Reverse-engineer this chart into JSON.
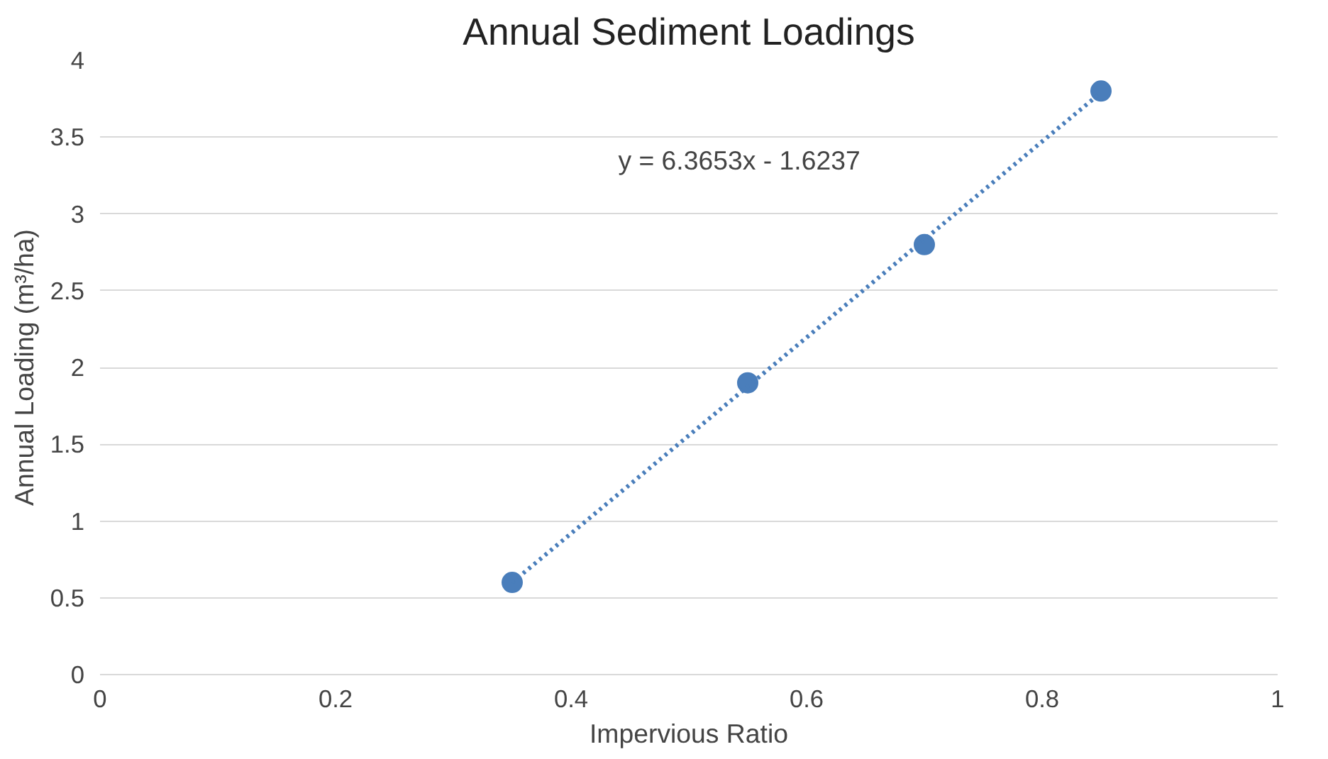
{
  "chart_data": {
    "type": "scatter",
    "title": "Annual Sediment Loadings",
    "xlabel": "Impervious Ratio",
    "ylabel": "Annual Loading (m³/ha)",
    "annotations": [
      "y = 6.3653x - 1.6237"
    ],
    "series": [
      {
        "color": "#4a7ebb",
        "x": [
          0.35,
          0.55,
          0.7,
          0.85
        ],
        "values": [
          0.6,
          1.9,
          2.8,
          3.8
        ],
        "marker": "circle"
      },
      {
        "type": "line",
        "color": "#4a7ebb",
        "x": [
          0.35,
          0.85
        ],
        "values": [
          0.6,
          3.79
        ],
        "line_style": "dotted",
        "marker": "none"
      }
    ],
    "xlim": [
      0,
      1
    ],
    "xticks": [
      0,
      0.2,
      0.4,
      0.6,
      0.8,
      1
    ],
    "ylim": [
      0,
      4
    ],
    "yticks": [
      0,
      0.5,
      1,
      1.5,
      2,
      2.5,
      3,
      3.5,
      4
    ],
    "grid": "y"
  }
}
